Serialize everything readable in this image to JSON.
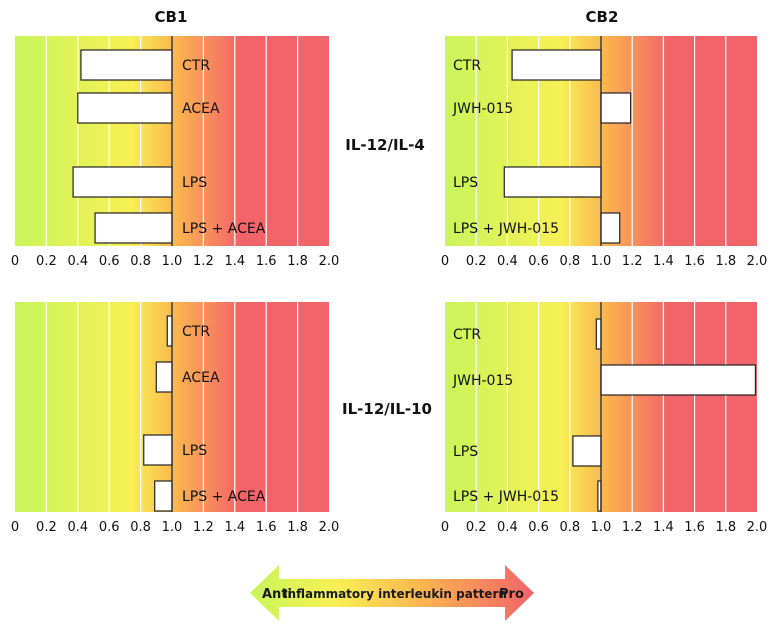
{
  "colors": {
    "anti": "#c8f55a",
    "neutral": "#f7f055",
    "mid": "#fbb24f",
    "pro": "#f2636a",
    "bar_fill": "#ffffff",
    "bar_stroke": "#222222",
    "grid": "#ffffff"
  },
  "column_titles": [
    "CB1",
    "CB2"
  ],
  "row_titles": [
    "IL-12/IL-4",
    "IL-12/IL-10"
  ],
  "legend": {
    "anti_label": "Anti",
    "middle_label": "Inflammatory interleukin pattern",
    "pro_label": "Pro"
  },
  "x_ticks": [
    "0",
    "0.2",
    "0.4",
    "0.6",
    "0.8",
    "1.0",
    "1.2",
    "1.4",
    "1.6",
    "1.8",
    "2.0"
  ],
  "chart_data": [
    {
      "type": "bar",
      "orientation": "horizontal",
      "column": "CB1",
      "row": "IL-12/IL-4",
      "categories": [
        "CTR",
        "ACEA",
        "LPS",
        "LPS + ACEA"
      ],
      "values": [
        0.42,
        0.4,
        0.37,
        0.51
      ],
      "baseline": 1.0,
      "xlim": [
        0,
        2.0
      ]
    },
    {
      "type": "bar",
      "orientation": "horizontal",
      "column": "CB2",
      "row": "IL-12/IL-4",
      "categories": [
        "CTR",
        "JWH-015",
        "LPS",
        "LPS + JWH-015"
      ],
      "values": [
        0.43,
        1.19,
        0.38,
        1.12
      ],
      "baseline": 1.0,
      "xlim": [
        0,
        2.0
      ]
    },
    {
      "type": "bar",
      "orientation": "horizontal",
      "column": "CB1",
      "row": "IL-12/IL-10",
      "categories": [
        "CTR",
        "ACEA",
        "LPS",
        "LPS + ACEA"
      ],
      "values": [
        0.97,
        0.9,
        0.82,
        0.89
      ],
      "baseline": 1.0,
      "xlim": [
        0,
        2.0
      ]
    },
    {
      "type": "bar",
      "orientation": "horizontal",
      "column": "CB2",
      "row": "IL-12/IL-10",
      "categories": [
        "CTR",
        "JWH-015",
        "LPS",
        "LPS + JWH-015"
      ],
      "values": [
        0.97,
        1.99,
        0.82,
        0.98
      ],
      "baseline": 1.0,
      "xlim": [
        0,
        2.0
      ]
    }
  ]
}
